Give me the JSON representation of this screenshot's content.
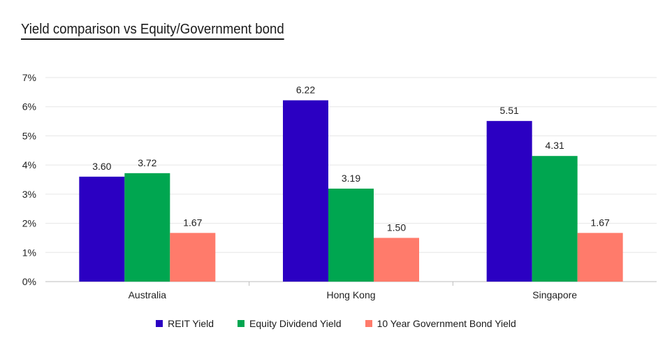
{
  "title": "Yield comparison vs Equity/Government bond",
  "chart_data": {
    "type": "bar",
    "categories": [
      "Australia",
      "Hong Kong",
      "Singapore"
    ],
    "series": [
      {
        "name": "REIT Yield",
        "values": [
          3.6,
          6.22,
          5.51
        ],
        "color": "#2B00C2"
      },
      {
        "name": "Equity Dividend Yield",
        "values": [
          3.72,
          3.19,
          4.31
        ],
        "color": "#00A650"
      },
      {
        "name": "10 Year Government Bond Yield",
        "values": [
          1.67,
          1.5,
          1.67
        ],
        "color": "#FF7B6B"
      }
    ],
    "data_labels": [
      [
        "3.60",
        "6.22",
        "5.51"
      ],
      [
        "3.72",
        "3.19",
        "4.31"
      ],
      [
        "1.67",
        "1.50",
        "1.67"
      ]
    ],
    "yticks": [
      "0%",
      "1%",
      "2%",
      "3%",
      "4%",
      "5%",
      "6%",
      "7%"
    ],
    "ylim": [
      0,
      7
    ],
    "grid": true,
    "legend": "bottom-center"
  }
}
